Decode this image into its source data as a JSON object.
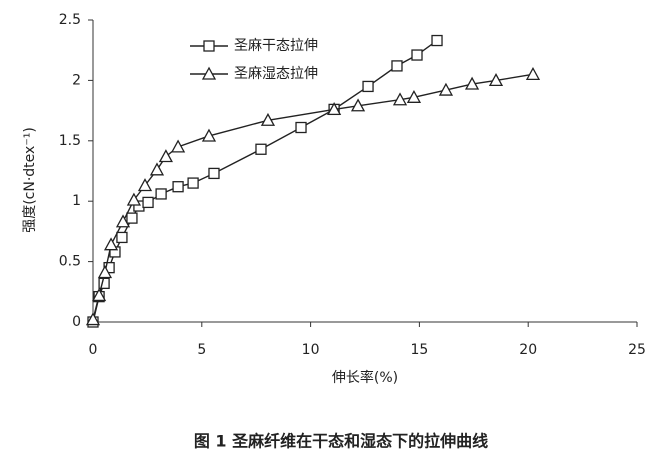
{
  "chart_data": {
    "type": "line",
    "x_label": "伸长率(%)",
    "y_label": "强度(cN·dtex⁻¹)",
    "caption": "图 1 圣麻纤维在干态和湿态下的拉伸曲线",
    "xlim": [
      0,
      25
    ],
    "xticks": [
      0,
      5,
      10,
      15,
      20,
      25
    ],
    "ylim": [
      0,
      2.5
    ],
    "yticks": [
      0,
      0.5,
      1,
      1.5,
      2,
      2.5
    ],
    "legend": "upper-left",
    "series": [
      {
        "name": "圣麻干态拉伸",
        "color": "#222222",
        "marker": "square",
        "x": [
          0,
          0.28,
          0.51,
          0.74,
          1.01,
          1.33,
          1.79,
          2.11,
          2.53,
          3.13,
          3.91,
          4.6,
          5.56,
          7.72,
          9.56,
          11.08,
          12.64,
          13.97,
          14.89,
          15.81
        ],
        "values": [
          0,
          0.21,
          0.32,
          0.45,
          0.58,
          0.7,
          0.86,
          0.96,
          0.99,
          1.06,
          1.12,
          1.15,
          1.23,
          1.43,
          1.61,
          1.76,
          1.95,
          2.12,
          2.21,
          2.33
        ]
      },
      {
        "name": "圣麻湿态拉伸",
        "color": "#222222",
        "marker": "triangle",
        "x": [
          0,
          0.28,
          0.55,
          0.83,
          1.38,
          1.88,
          2.39,
          2.94,
          3.35,
          3.91,
          5.33,
          8.04,
          11.08,
          12.18,
          14.11,
          14.75,
          16.22,
          17.42,
          18.52,
          20.22
        ],
        "values": [
          0.02,
          0.22,
          0.41,
          0.64,
          0.83,
          1.01,
          1.13,
          1.26,
          1.37,
          1.45,
          1.54,
          1.67,
          1.76,
          1.79,
          1.84,
          1.86,
          1.92,
          1.97,
          2.0,
          2.05
        ]
      }
    ]
  }
}
